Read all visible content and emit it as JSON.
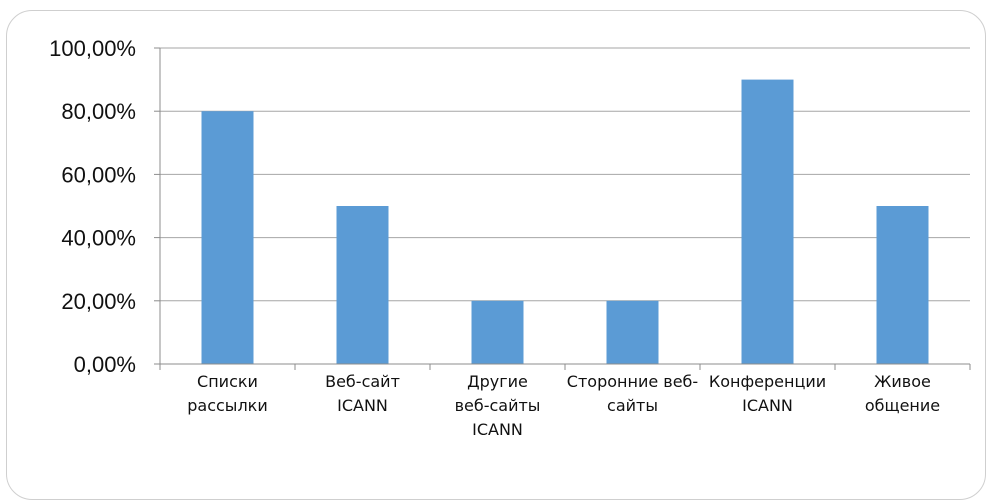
{
  "chart_data": {
    "type": "bar",
    "categories": [
      [
        "Списки",
        "рассылки"
      ],
      [
        "Веб-сайт",
        "ICANN"
      ],
      [
        "Другие",
        "веб-сайты",
        "ICANN"
      ],
      [
        "Сторонние веб-",
        "сайты"
      ],
      [
        "Конференции",
        "ICANN"
      ],
      [
        "Живое",
        "общение"
      ]
    ],
    "values": [
      80,
      50,
      20,
      20,
      90,
      50
    ],
    "ylim": [
      0,
      100
    ],
    "yticks": [
      0,
      20,
      40,
      60,
      80,
      100
    ],
    "ytick_labels": [
      "0,00%",
      "20,00%",
      "40,00%",
      "60,00%",
      "80,00%",
      "100,00%"
    ],
    "title": "",
    "xlabel": "",
    "ylabel": "",
    "grid": true,
    "legend": "none",
    "colors": {
      "bar": "#5b9bd5",
      "grid": "#a6a6a6",
      "axis": "#8c8c8c"
    }
  }
}
